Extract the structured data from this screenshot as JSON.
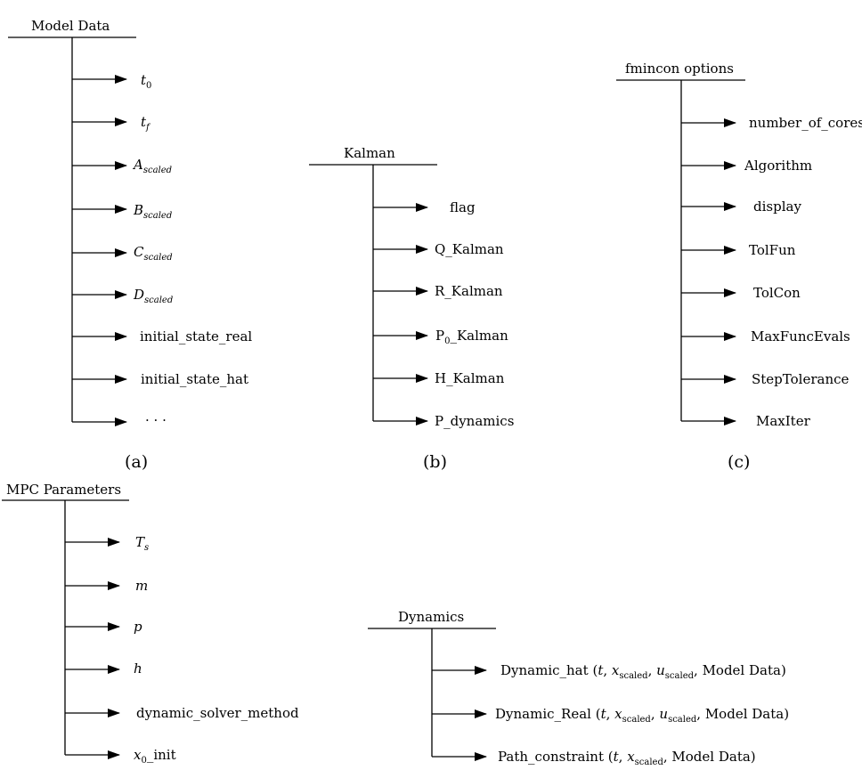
{
  "colors": {
    "line": "#000000",
    "text": "#000000",
    "background": "#ffffff"
  },
  "panels": {
    "model_data": {
      "title": "Model Data",
      "caption": "(a)",
      "items": [
        "t",
        "0",
        "t",
        "f",
        "A",
        "scaled",
        "B",
        "scaled",
        "C",
        "scaled",
        "D",
        "scaled",
        "initial_state_real",
        "initial_state_hat",
        "· · ·"
      ]
    },
    "kalman": {
      "title": "Kalman",
      "caption": "(b)",
      "items": [
        "flag",
        "Q_Kalman",
        "R_Kalman",
        "P",
        "0",
        "_Kalman",
        "H_Kalman",
        "P_dynamics"
      ]
    },
    "fmincon": {
      "title": "fmincon options",
      "caption": "(c)",
      "items": [
        "number_of_cores",
        "Algorithm",
        "display",
        "TolFun",
        "TolCon",
        "MaxFuncEvals",
        "StepTolerance",
        "MaxIter"
      ]
    },
    "mpc": {
      "title": "MPC Parameters",
      "items": [
        "T",
        "s",
        "m",
        "p",
        "h",
        "dynamic_solver_method",
        "x",
        "0",
        "_init"
      ]
    },
    "dynamics": {
      "title": "Dynamics",
      "items": {
        "dyn_hat": "Dynamic_hat",
        "dyn_real": "Dynamic_Real",
        "path": "Path_constraint",
        "open": "(",
        "close": ")",
        "t": "t",
        "sep": ", ",
        "x": "x",
        "u": "u",
        "scaled": "scaled",
        "model_data": "Model Data"
      }
    }
  }
}
